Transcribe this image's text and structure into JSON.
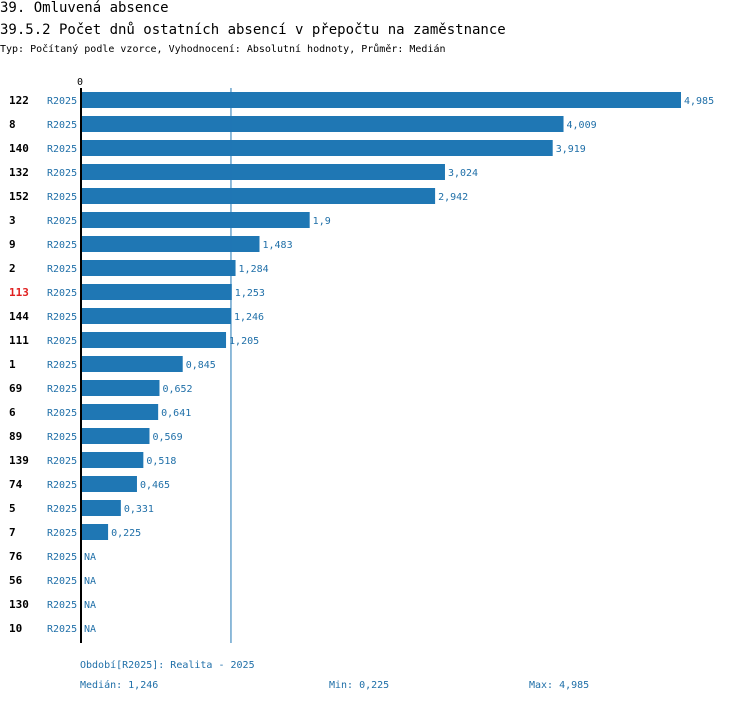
{
  "title": "39. Omluvená absence",
  "subtitle": "39.5.2 Počet dnů ostatních absencí v přepočtu na zaměstnance",
  "description": "Typ: Počítaný podle vzorce, Vyhodnocení: Absolutní hodnoty, Průměr: Medián",
  "colors": {
    "bar": "#1f77b4",
    "highlight": "#e02020",
    "label": "#1f6fa8"
  },
  "chart_data": {
    "type": "bar",
    "orientation": "horizontal",
    "axis_zero_label": "0",
    "xlim": [
      0,
      4.985
    ],
    "median_line": 1.246,
    "series_label": "R2025",
    "categories": [
      "122",
      "8",
      "140",
      "132",
      "152",
      "3",
      "9",
      "2",
      "113",
      "144",
      "111",
      "1",
      "69",
      "6",
      "89",
      "139",
      "74",
      "5",
      "7",
      "76",
      "56",
      "130",
      "10"
    ],
    "values": [
      4.985,
      4.009,
      3.919,
      3.024,
      2.942,
      1.9,
      1.483,
      1.284,
      1.253,
      1.246,
      1.205,
      0.845,
      0.652,
      0.641,
      0.569,
      0.518,
      0.465,
      0.331,
      0.225,
      null,
      null,
      null,
      null
    ],
    "value_labels": [
      "4,985",
      "4,009",
      "3,919",
      "3,024",
      "2,942",
      "1,9",
      "1,483",
      "1,284",
      "1,253",
      "1,246",
      "1,205",
      "0,845",
      "0,652",
      "0,641",
      "0,569",
      "0,518",
      "0,465",
      "0,331",
      "0,225",
      "NA",
      "NA",
      "NA",
      "NA"
    ],
    "highlight": "113"
  },
  "footer": {
    "period": "Období[R2025]: Realita - 2025",
    "median": "Medián: 1,246",
    "min": "Min: 0,225",
    "max": "Max: 4,985"
  }
}
